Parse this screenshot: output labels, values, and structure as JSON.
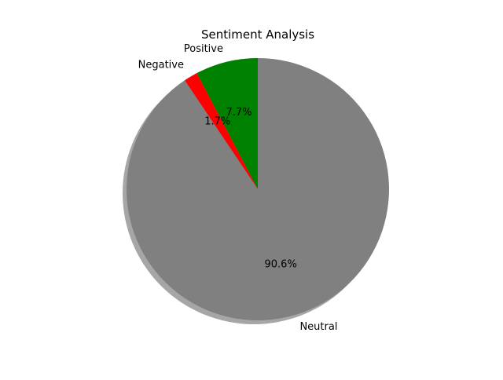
{
  "chart_data": {
    "type": "pie",
    "title": "Sentiment Analysis",
    "categories": [
      "Positive",
      "Negative",
      "Neutral"
    ],
    "values": [
      7.7,
      1.7,
      90.6
    ],
    "value_labels": [
      "7.7%",
      "1.7%",
      "90.6%"
    ],
    "colors": [
      "#008000",
      "#ff0000",
      "#808080"
    ],
    "start_angle_deg": 90,
    "direction": "counterclockwise",
    "shadow": true,
    "legend": "none"
  }
}
